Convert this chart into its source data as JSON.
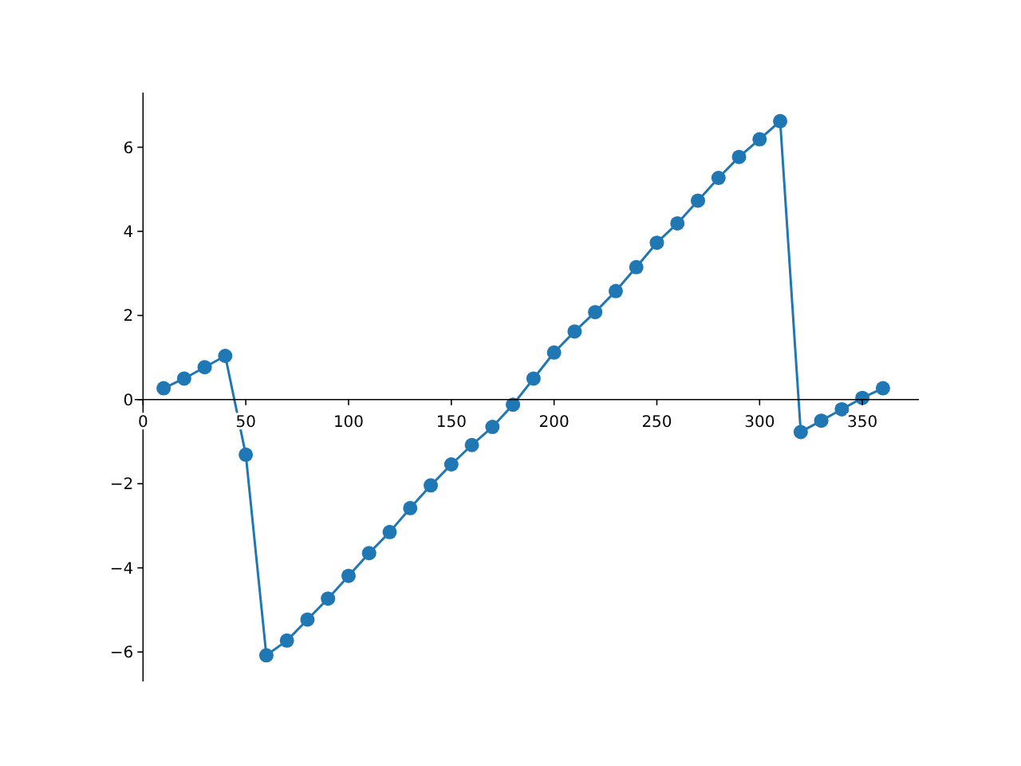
{
  "chart_data": {
    "type": "line",
    "x": [
      10,
      20,
      30,
      40,
      50,
      60,
      70,
      80,
      90,
      100,
      110,
      120,
      130,
      140,
      150,
      160,
      170,
      180,
      190,
      200,
      210,
      220,
      230,
      240,
      250,
      260,
      270,
      280,
      290,
      300,
      310,
      320,
      330,
      340,
      350,
      360
    ],
    "series": [
      {
        "color": "#1f77b4",
        "values": [
          0.27,
          0.5,
          0.77,
          1.04,
          -1.31,
          -6.08,
          -5.73,
          -5.23,
          -4.73,
          -4.19,
          -3.65,
          -3.15,
          -2.58,
          -2.04,
          -1.54,
          -1.08,
          -0.65,
          -0.12,
          0.5,
          1.12,
          1.62,
          2.08,
          2.58,
          3.15,
          3.73,
          4.19,
          4.73,
          5.27,
          5.77,
          6.19,
          6.62,
          -0.77,
          -0.5,
          -0.23,
          0.04,
          0.27
        ]
      }
    ],
    "xlim": [
      -7.5,
      377.5
    ],
    "ylim": [
      -6.7,
      7.3
    ],
    "xticks": [
      0,
      50,
      100,
      150,
      200,
      250,
      300,
      350
    ],
    "yticks": [
      -6,
      -4,
      -2,
      0,
      2,
      4,
      6
    ],
    "marker": "circle",
    "line_style": "solid",
    "grid": false
  }
}
